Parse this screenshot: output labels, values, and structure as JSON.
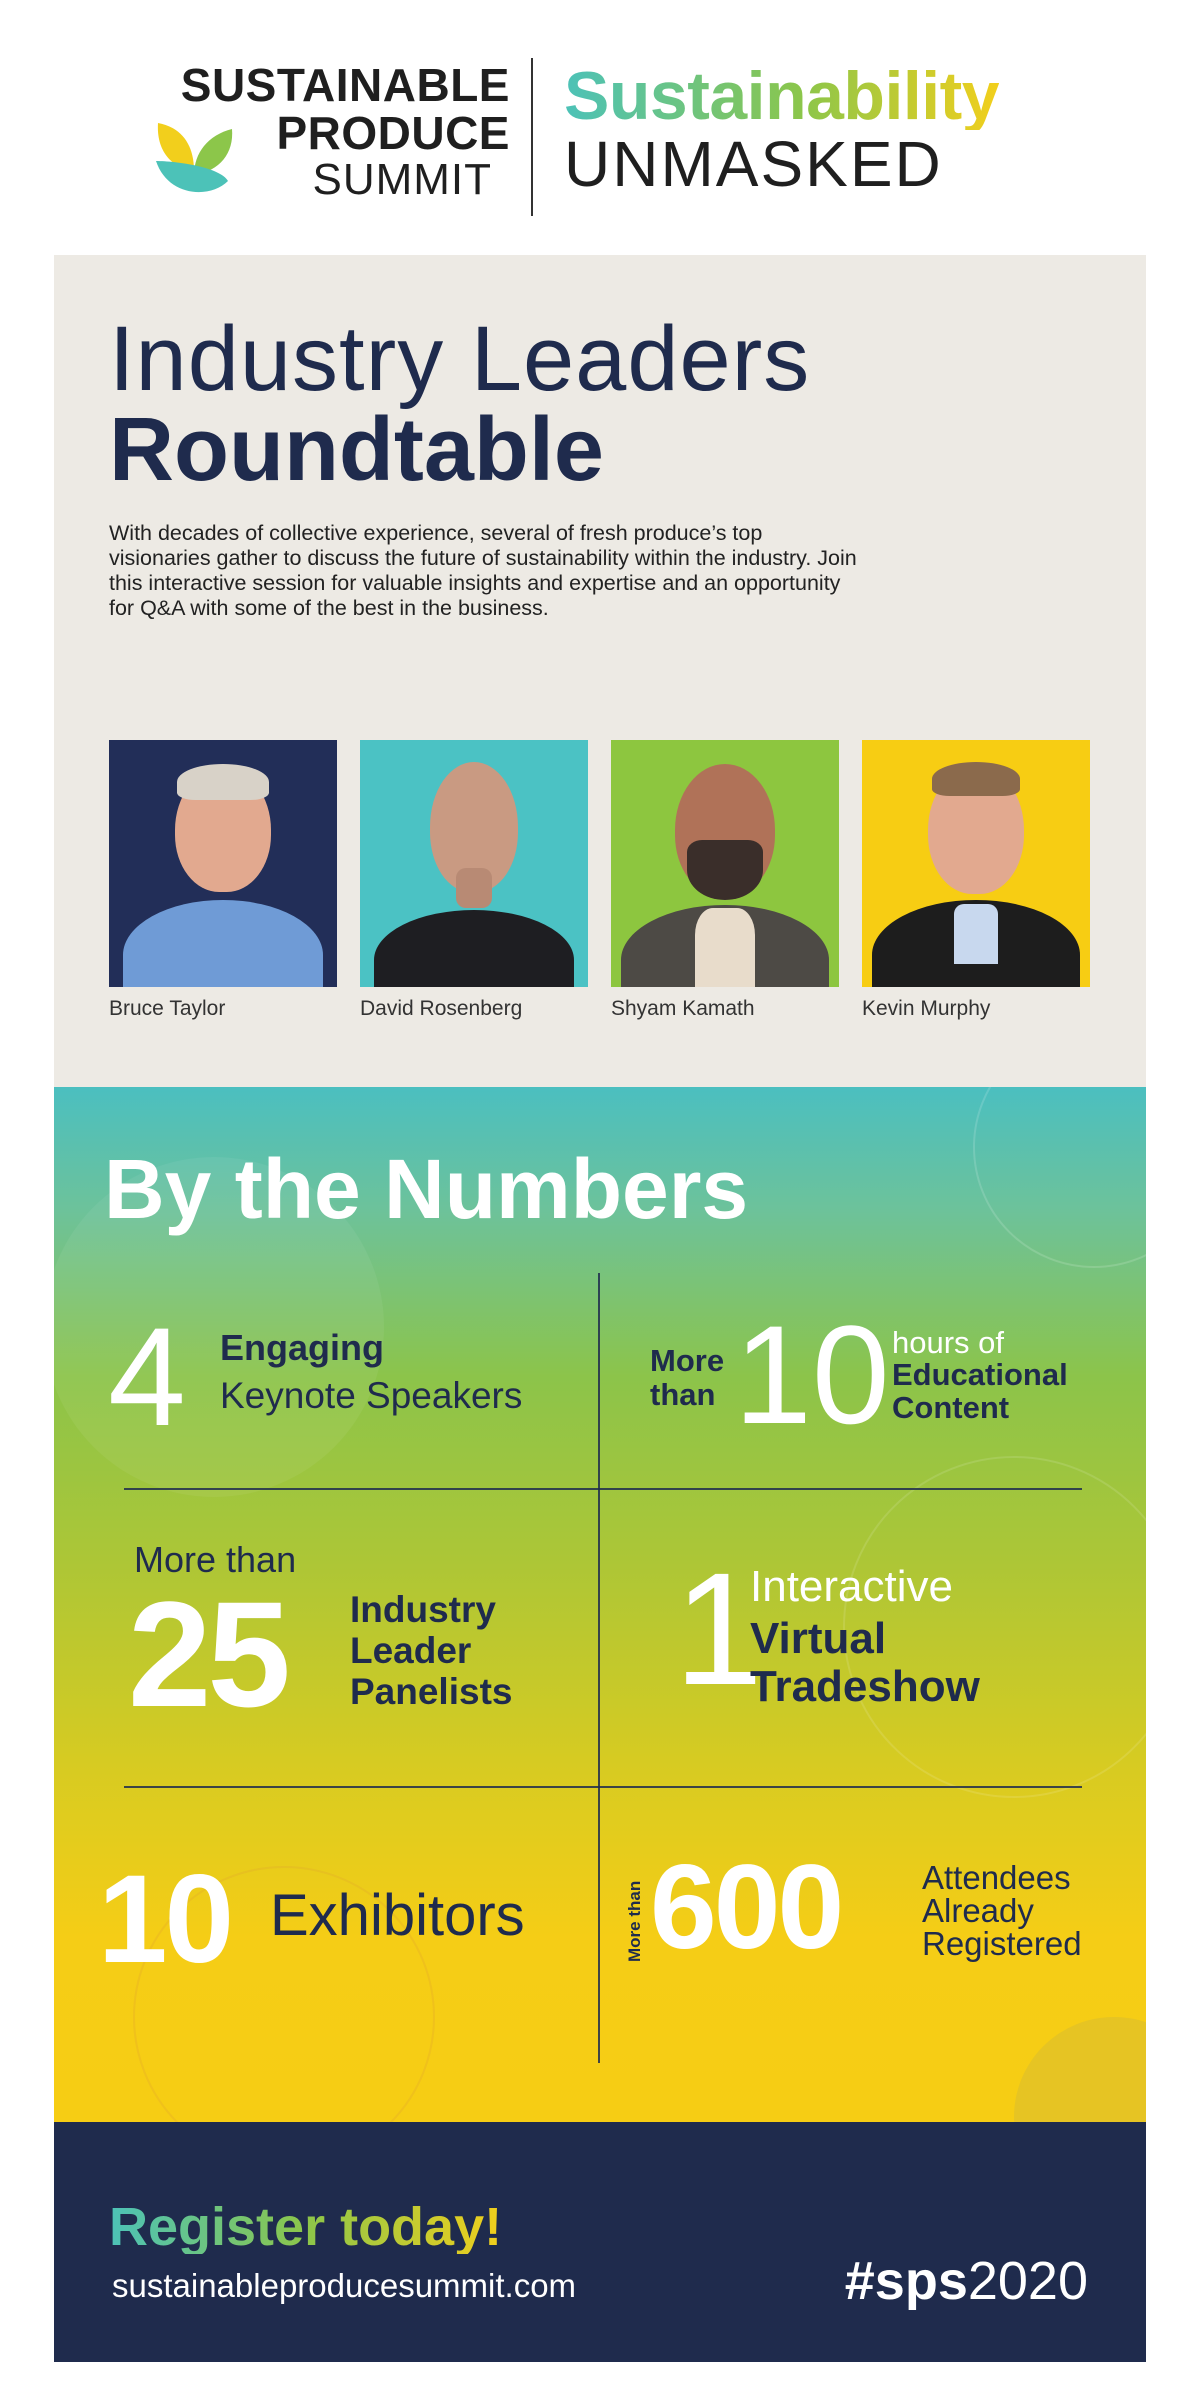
{
  "header": {
    "logo_line1": "SUSTAINABLE",
    "logo_line2": "PRODUCE",
    "logo_line3": "SUMMIT",
    "tagline_line1": "Sustainability",
    "tagline_line2": "UNMASKED"
  },
  "roundtable": {
    "title_line1": "Industry Leaders",
    "title_line2": "Roundtable",
    "description": "With decades of collective experience, several of fresh produce’s top visionaries gather to discuss the future of sustainability within the industry. Join this interactive session for valuable insights and expertise and an opportunity for Q&A with some of the best in the business.",
    "speakers": [
      {
        "name": "Bruce Taylor",
        "bg": "#222e58"
      },
      {
        "name": "David Rosenberg",
        "bg": "#4bc2c4"
      },
      {
        "name": "Shyam Kamath",
        "bg": "#8dc63f"
      },
      {
        "name": "Kevin Murphy",
        "bg": "#f7cd13"
      }
    ]
  },
  "numbers": {
    "title": "By the Numbers",
    "stat1": {
      "number": "4",
      "bold": "Engaging",
      "light": "Keynote Speakers"
    },
    "stat2": {
      "prefix_line1": "More",
      "prefix_line2": "than",
      "number": "10",
      "light": "hours of",
      "bold_line1": "Educational",
      "bold_line2": "Content"
    },
    "stat3": {
      "prefix": "More than",
      "number": "25",
      "bold_line1": "Industry",
      "bold_line2": "Leader",
      "bold_line3": "Panelists"
    },
    "stat4": {
      "number": "1",
      "light": "Interactive",
      "bold_line1": "Virtual",
      "bold_line2": "Tradeshow"
    },
    "stat5": {
      "number": "10",
      "light": "Exhibitors"
    },
    "stat6": {
      "prefix": "More than",
      "number": "600",
      "light_line1": "Attendees",
      "light_line2": "Already",
      "light_line3": "Registered"
    }
  },
  "footer": {
    "register": "Register today!",
    "website": "sustainableproducesummit.com",
    "hashtag_bold": "#sps",
    "hashtag_light": "2020"
  },
  "colors": {
    "navy": "#1f2b4d",
    "teal": "#4bc2c4",
    "green": "#8dc63f",
    "yellow": "#f7cd13",
    "beige": "#edeae4"
  }
}
